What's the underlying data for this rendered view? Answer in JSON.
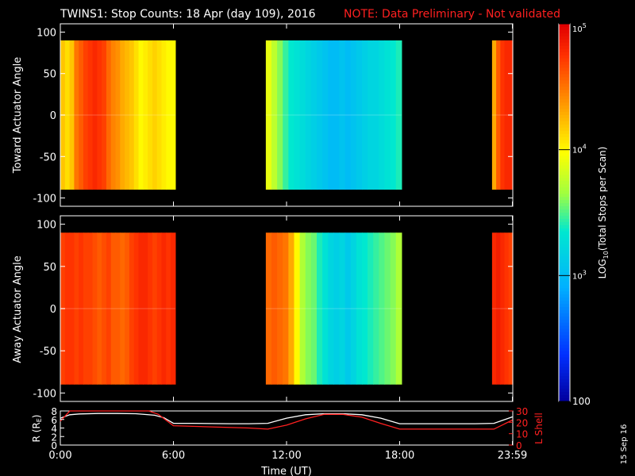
{
  "title": {
    "main": "TWINS1: Stop Counts: 18 Apr (day 109), 2016",
    "note": "NOTE: Data Preliminary - Not validated"
  },
  "footer_date": "15 Sep 16",
  "chart_data": [
    {
      "type": "heatmap",
      "ylabel": "Toward Actuator Angle",
      "ylim": [
        -110,
        110
      ],
      "yticks": [
        "100",
        "50",
        "0",
        "-50",
        "-100"
      ],
      "ytick_values": [
        100,
        50,
        0,
        -50,
        -100
      ],
      "data_y_range": [
        -90,
        90
      ],
      "time_range_hours": [
        0,
        24
      ],
      "segments": [
        {
          "start_h": 0.0,
          "end_h": 6.1,
          "log_profile": [
            4.2,
            4.1,
            4.2,
            4.5,
            4.6,
            4.7,
            4.75,
            4.8,
            4.75,
            4.7,
            4.55,
            4.45,
            4.4,
            4.3,
            4.25,
            4.2,
            4.1,
            4.0,
            4.05,
            4.1,
            4.15,
            4.1,
            4.05,
            4.0,
            4.0
          ]
        },
        {
          "start_h": 10.9,
          "end_h": 18.1,
          "log_profile": [
            3.9,
            3.75,
            3.6,
            3.45,
            3.35,
            3.3,
            3.25,
            3.2,
            3.15,
            3.1,
            3.05,
            3.0,
            3.0,
            3.05,
            3.0,
            3.05,
            3.1,
            3.15,
            3.2,
            3.2,
            3.25,
            3.3,
            3.35,
            3.4
          ]
        },
        {
          "start_h": 22.9,
          "end_h": 24.0,
          "log_profile": [
            4.3,
            4.6,
            4.75,
            4.8,
            4.8
          ]
        }
      ]
    },
    {
      "type": "heatmap",
      "ylabel": "Away Actuator Angle",
      "ylim": [
        -110,
        110
      ],
      "yticks": [
        "100",
        "50",
        "0",
        "-50",
        "-100"
      ],
      "ytick_values": [
        100,
        50,
        0,
        -50,
        -100
      ],
      "data_y_range": [
        -90,
        90
      ],
      "time_range_hours": [
        0,
        24
      ],
      "segments": [
        {
          "start_h": 0.0,
          "end_h": 6.1,
          "log_profile": [
            4.7,
            4.75,
            4.75,
            4.7,
            4.75,
            4.7,
            4.7,
            4.65,
            4.6,
            4.65,
            4.7,
            4.6,
            4.6,
            4.55,
            4.6,
            4.7,
            4.75,
            4.8,
            4.8,
            4.75,
            4.7,
            4.75,
            4.8,
            4.75,
            4.8
          ]
        },
        {
          "start_h": 10.9,
          "end_h": 18.1,
          "log_profile": [
            4.55,
            4.6,
            4.55,
            4.5,
            4.3,
            4.0,
            3.7,
            3.6,
            3.55,
            3.4,
            3.3,
            3.2,
            3.15,
            3.2,
            3.1,
            3.2,
            3.3,
            3.35,
            3.4,
            3.45,
            3.5,
            3.55,
            3.6,
            3.7
          ]
        },
        {
          "start_h": 22.9,
          "end_h": 24.0,
          "log_profile": [
            4.8,
            4.85,
            4.8,
            4.75,
            4.7
          ]
        }
      ]
    },
    {
      "type": "line",
      "xlabel": "Time (UT)",
      "xticks": [
        "0:00",
        "6:00",
        "12:00",
        "18:00",
        "23:59"
      ],
      "xtick_values": [
        0,
        6,
        12,
        18,
        23.98
      ],
      "ylabel_left": "R (RE)",
      "ylim_left": [
        0,
        8
      ],
      "yticks_left": [
        "8",
        "6",
        "4",
        "2",
        "0"
      ],
      "ylabel_right": "L Shell",
      "ylim_right": [
        0,
        30
      ],
      "yticks_right": [
        "30",
        "20",
        "10",
        "0"
      ],
      "series": [
        {
          "axis": "left",
          "color": "#ffffff",
          "x": [
            0,
            0.5,
            1,
            2,
            3,
            4,
            5,
            5.5,
            6,
            7,
            8,
            9,
            10,
            11,
            12,
            13,
            14,
            15,
            16,
            17,
            18,
            19,
            20,
            21,
            22,
            23,
            23.98
          ],
          "y": [
            6.3,
            7.1,
            7.3,
            7.4,
            7.4,
            7.35,
            7.0,
            6.4,
            5.1,
            5.1,
            5.05,
            5.0,
            5.0,
            5.1,
            6.3,
            7.1,
            7.35,
            7.35,
            7.1,
            6.3,
            5.0,
            5.0,
            5.0,
            5.0,
            5.0,
            5.1,
            6.6
          ]
        },
        {
          "axis": "right",
          "color": "#ff2020",
          "x": [
            0,
            0.5,
            1.0,
            4.7,
            5.2,
            6,
            8,
            10,
            11,
            12,
            13,
            14,
            15,
            16,
            17,
            18,
            19,
            21,
            23,
            23.98
          ],
          "y": [
            21,
            30,
            30,
            30,
            27,
            17,
            16,
            15,
            14,
            17.5,
            23,
            27,
            27,
            24.5,
            19,
            14,
            14,
            14,
            14,
            22
          ]
        }
      ]
    },
    {
      "type": "colorbar",
      "scale": "log",
      "range": [
        100,
        100000
      ],
      "tick_labels": [
        "10^5",
        "10^4",
        "10^3",
        "100"
      ],
      "tick_values": [
        100000,
        10000,
        1000,
        100
      ],
      "label": "LOG10(Total Stops per Scan)"
    }
  ]
}
